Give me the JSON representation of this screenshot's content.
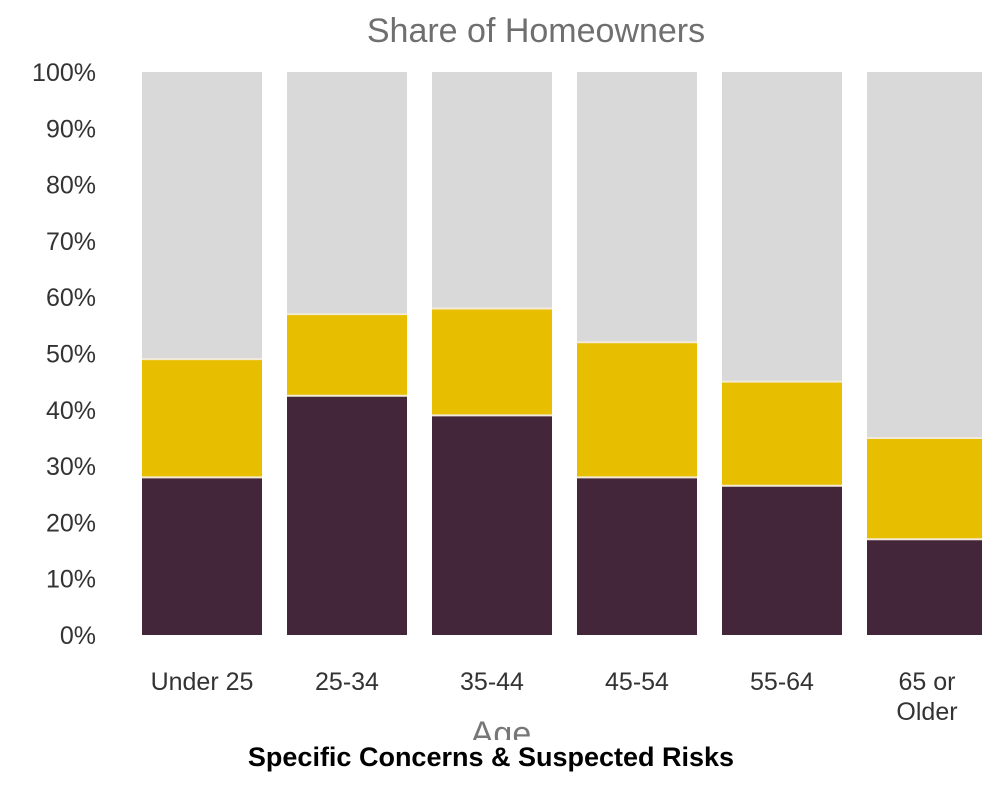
{
  "chart_data": {
    "type": "bar",
    "stacked": true,
    "title": "Share of Homeowners",
    "xlabel": "Age",
    "ylabel": "",
    "ylim": [
      0,
      100
    ],
    "yticks": [
      "0%",
      "10%",
      "20%",
      "30%",
      "40%",
      "50%",
      "60%",
      "70%",
      "80%",
      "90%",
      "100%"
    ],
    "categories": [
      [
        "Under 25"
      ],
      [
        "25-34"
      ],
      [
        "35-44"
      ],
      [
        "45-54"
      ],
      [
        "55-64"
      ],
      [
        "65 or",
        "Older"
      ]
    ],
    "series": [
      {
        "color": "#44263a",
        "values": [
          28,
          42.5,
          39,
          28,
          26.5,
          17
        ]
      },
      {
        "color": "#e8be00",
        "values": [
          21,
          14.5,
          19,
          24,
          18.5,
          18
        ]
      },
      {
        "color": "#d9d9d9",
        "values": [
          51,
          43,
          42,
          48,
          55,
          65
        ]
      }
    ],
    "grid": false,
    "legend": "none"
  },
  "caption": "Specific Concerns & Suspected Risks"
}
